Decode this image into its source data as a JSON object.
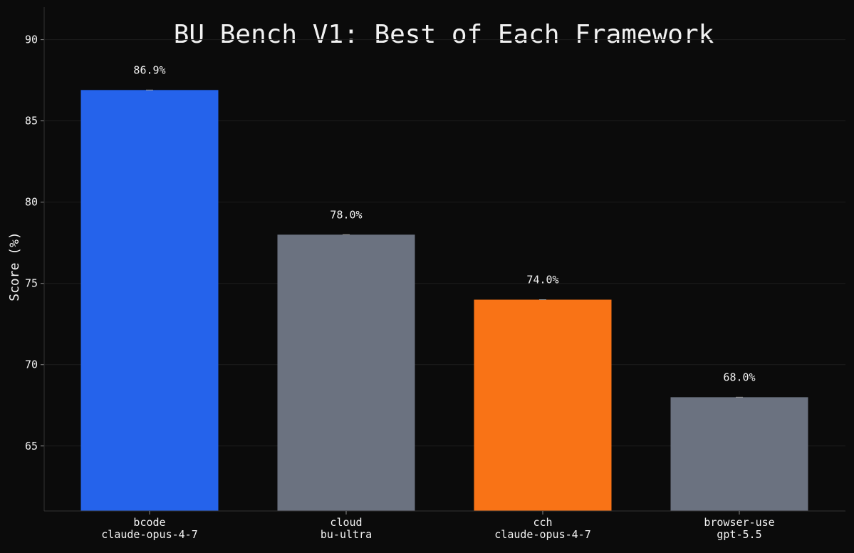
{
  "chart_data": {
    "type": "bar",
    "title": "BU Bench V1: Best of Each Framework",
    "xlabel": "",
    "ylabel": "Score (%)",
    "ylim": [
      61.0,
      92.0
    ],
    "yticks": [
      65,
      70,
      75,
      80,
      85,
      90
    ],
    "grid": true,
    "categories": [
      {
        "name": "bcode",
        "model": "claude-opus-4-7"
      },
      {
        "name": "cloud",
        "model": "bu-ultra"
      },
      {
        "name": "cch",
        "model": "claude-opus-4-7"
      },
      {
        "name": "browser-use",
        "model": "gpt-5.5"
      }
    ],
    "values": [
      86.9,
      78.0,
      74.0,
      68.0
    ],
    "value_labels": [
      "86.9%",
      "78.0%",
      "74.0%",
      "68.0%"
    ],
    "bar_colors": [
      "#2563eb",
      "#6b7280",
      "#f97316",
      "#6b7280"
    ]
  },
  "colors": {
    "background": "#0b0b0b",
    "text": "#f2f2f2",
    "grid": "#1c1c1c",
    "axis": "#333333"
  }
}
